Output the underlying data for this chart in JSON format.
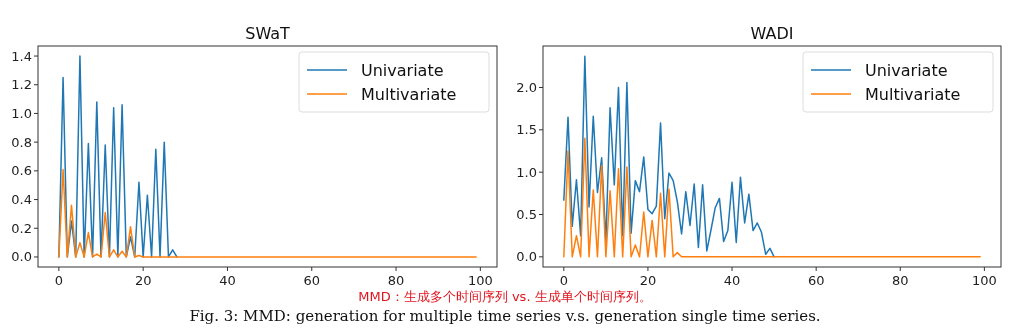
{
  "chart_data": [
    {
      "type": "line",
      "title": "SWaT",
      "x": [
        0,
        1,
        2,
        3,
        4,
        5,
        6,
        7,
        8,
        9,
        10,
        11,
        12,
        13,
        14,
        15,
        16,
        17,
        18,
        19,
        20,
        21,
        22,
        23,
        24,
        25,
        26,
        27,
        28,
        29,
        30,
        31,
        32,
        33,
        34,
        35,
        36,
        37,
        38,
        39,
        40,
        41,
        42,
        43,
        44,
        45,
        46,
        47,
        48,
        49,
        50,
        51,
        52,
        53,
        54,
        55,
        56,
        57,
        58,
        59,
        60,
        61,
        62,
        63,
        64,
        65,
        66,
        67,
        68,
        69,
        70,
        71,
        72,
        73,
        74,
        75,
        76,
        77,
        78,
        79,
        80,
        81,
        82,
        83,
        84,
        85,
        86,
        87,
        88,
        89,
        90,
        91,
        92,
        93,
        94,
        95,
        96,
        97,
        98,
        99
      ],
      "series": [
        {
          "name": "Univariate",
          "color": "#1f77b4",
          "values": [
            0,
            1.25,
            0,
            0.25,
            0,
            1.4,
            0,
            0.79,
            0,
            1.08,
            0,
            0.78,
            0,
            1.04,
            0,
            1.06,
            0,
            0.14,
            0,
            0.52,
            0,
            0.43,
            0,
            0.75,
            0,
            0.8,
            0,
            0.05,
            0,
            null,
            null,
            null,
            null,
            null,
            null,
            null,
            null,
            null,
            null,
            null,
            null,
            null,
            null,
            null,
            null,
            null,
            null,
            null,
            null,
            null,
            null,
            null,
            null,
            null,
            null,
            null,
            null,
            null,
            null,
            null,
            null,
            null,
            null,
            null,
            null,
            null,
            null,
            null,
            null,
            null,
            null,
            null,
            null,
            null,
            null,
            null,
            null,
            null,
            null,
            null,
            null,
            null,
            null,
            null,
            null,
            null,
            null,
            null,
            null,
            null,
            null,
            null,
            null,
            null,
            null,
            null,
            null,
            null,
            null,
            null
          ]
        },
        {
          "name": "Multivariate",
          "color": "#ff7f0e",
          "values": [
            0,
            0.61,
            0,
            0.36,
            0,
            0.1,
            0,
            0.17,
            0,
            0.02,
            0,
            0.31,
            0,
            0.05,
            0,
            0.04,
            0,
            0.21,
            0,
            0.01,
            0,
            0,
            0,
            0,
            0,
            0,
            0,
            0,
            0,
            0,
            0,
            0,
            0,
            0,
            0,
            0,
            0,
            0,
            0,
            0,
            0,
            0,
            0,
            0,
            0,
            0,
            0,
            0,
            0,
            0,
            0,
            0,
            0,
            0,
            0,
            0,
            0,
            0,
            0,
            0,
            0,
            0,
            0,
            0,
            0,
            0,
            0,
            0,
            0,
            0,
            0,
            0,
            0,
            0,
            0,
            0,
            0,
            0,
            0,
            0,
            0,
            0,
            0,
            0,
            0,
            0,
            0,
            0,
            0,
            0,
            0,
            0,
            0,
            0,
            0,
            0,
            0,
            0,
            0,
            0
          ]
        }
      ],
      "xlim": [
        -4.95,
        103.95
      ],
      "xticks": [
        0,
        20,
        40,
        60,
        80,
        100
      ],
      "ylim": [
        -0.07,
        1.47
      ],
      "yticks": [
        {
          "value": 0,
          "label": "0.0"
        },
        {
          "value": 0.2,
          "label": "0.2"
        },
        {
          "value": 0.4,
          "label": "0.4"
        },
        {
          "value": 0.6,
          "label": "0.6"
        },
        {
          "value": 0.8,
          "label": "0.8"
        },
        {
          "value": 1,
          "label": "1.0"
        },
        {
          "value": 1.2,
          "label": "1.2"
        },
        {
          "value": 1.4,
          "label": "1.4"
        }
      ],
      "legend": "top right",
      "grid": false,
      "annotations": [
        "MMD：生成多个时间序列 vs. 生成单个时间序列。",
        "Fig. 3: MMD: generation for multiple time series v.s. generation single time series."
      ]
    },
    {
      "type": "line",
      "title": "WADI",
      "x": [
        0,
        1,
        2,
        3,
        4,
        5,
        6,
        7,
        8,
        9,
        10,
        11,
        12,
        13,
        14,
        15,
        16,
        17,
        18,
        19,
        20,
        21,
        22,
        23,
        24,
        25,
        26,
        27,
        28,
        29,
        30,
        31,
        32,
        33,
        34,
        35,
        36,
        37,
        38,
        39,
        40,
        41,
        42,
        43,
        44,
        45,
        46,
        47,
        48,
        49,
        50,
        51,
        52,
        53,
        54,
        55,
        56,
        57,
        58,
        59,
        60,
        61,
        62,
        63,
        64,
        65,
        66,
        67,
        68,
        69,
        70,
        71,
        72,
        73,
        74,
        75,
        76,
        77,
        78,
        79,
        80,
        81,
        82,
        83,
        84,
        85,
        86,
        87,
        88,
        89,
        90,
        91,
        92,
        93,
        94,
        95,
        96,
        97,
        98,
        99
      ],
      "series": [
        {
          "name": "Univariate",
          "color": "#1f77b4",
          "values": [
            0.67,
            1.65,
            0.36,
            0.91,
            0.25,
            2.37,
            0.59,
            1.66,
            0.76,
            1.17,
            0.18,
            1.76,
            0.85,
            2.0,
            0.25,
            2.06,
            0.28,
            0.9,
            0.77,
            1.18,
            0.56,
            0.51,
            0.6,
            1.58,
            0.45,
            0.99,
            0.9,
            0.65,
            0.27,
            0.77,
            0.37,
            0.86,
            0.11,
            0.85,
            0.07,
            0.32,
            0.58,
            0.69,
            0.18,
            0.31,
            0.88,
            0.17,
            0.94,
            0.4,
            0.74,
            0.31,
            0.4,
            0.29,
            0.03,
            0.1,
            0,
            null,
            null,
            null,
            null,
            null,
            null,
            null,
            null,
            null,
            null,
            null,
            null,
            null,
            null,
            null,
            null,
            null,
            null,
            null,
            null,
            null,
            null,
            null,
            null,
            null,
            null,
            null,
            null,
            null,
            null,
            null,
            null,
            null,
            null,
            null,
            null,
            null,
            null,
            null,
            null,
            null,
            null,
            null,
            null,
            null,
            null,
            null,
            null,
            null
          ]
        },
        {
          "name": "Multivariate",
          "color": "#ff7f0e",
          "values": [
            0,
            1.25,
            0,
            0.25,
            0,
            1.4,
            0,
            0.79,
            0,
            1.08,
            0,
            0.78,
            0,
            1.04,
            0,
            1.06,
            0,
            0.14,
            0,
            0.53,
            0,
            0.43,
            0,
            0.75,
            0,
            0.8,
            0,
            0.05,
            0,
            0,
            0,
            0,
            0,
            0,
            0,
            0,
            0,
            0,
            0,
            0,
            0,
            0,
            0,
            0,
            0,
            0,
            0,
            0,
            0,
            0,
            0,
            0,
            0,
            0,
            0,
            0,
            0,
            0,
            0,
            0,
            0,
            0,
            0,
            0,
            0,
            0,
            0,
            0,
            0,
            0,
            0,
            0,
            0,
            0,
            0,
            0,
            0,
            0,
            0,
            0,
            0,
            0,
            0,
            0,
            0,
            0,
            0,
            0,
            0,
            0,
            0,
            0,
            0,
            0,
            0,
            0,
            0,
            0,
            0,
            0
          ]
        }
      ],
      "xlim": [
        -4.95,
        103.95
      ],
      "xticks": [
        0,
        20,
        40,
        60,
        80,
        100
      ],
      "ylim": [
        -0.12,
        2.49
      ],
      "yticks": [
        {
          "value": 0,
          "label": "0.0"
        },
        {
          "value": 0.5,
          "label": "0.5"
        },
        {
          "value": 1,
          "label": "1.0"
        },
        {
          "value": 1.5,
          "label": "1.5"
        },
        {
          "value": 2,
          "label": "2.0"
        }
      ],
      "legend": "top right",
      "grid": false
    }
  ]
}
